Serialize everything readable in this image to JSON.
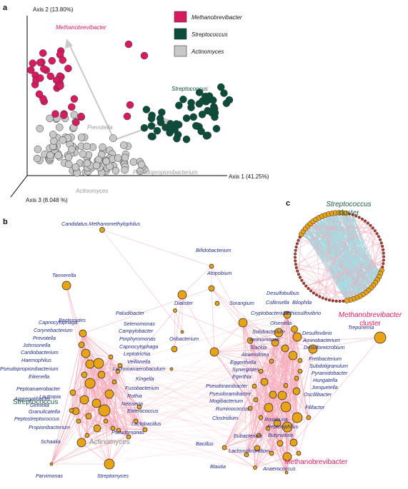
{
  "panel_labels": {
    "a": "a",
    "b": "b",
    "c": "c"
  },
  "colors": {
    "methano": "#d81b60",
    "strepto": "#0b4d3a",
    "actino": "#c8c8c8",
    "node": "#e8a317",
    "edge_pos": "#f7a8b8",
    "edge_neg": "#a8d8e0",
    "taxon": "#1f2a8a"
  },
  "pcoa": {
    "axis1": "Axis 1 (41.25%)",
    "axis2": "Axis 2 (13.80%)",
    "axis3": "Axis 3 (8.048 %)",
    "legend": [
      "Methanobrevibacter",
      "Streptococcus",
      "Actinomyces"
    ],
    "labels": {
      "methanobrevibacter": "Methanobrevibacter",
      "streptococcus": "Streptococcus",
      "prevotella": "Prevotella",
      "pseudopropionibacterium": "Pseudopropionibacterium",
      "actinomyces": "Actinomyces"
    }
  },
  "network": {
    "taxa": [
      "Candidatus.Methanomethylophilus",
      "Bifidobacterium",
      "Tannerella",
      "Atopobium",
      "Dialister",
      "Desulfobulbus",
      "Sorangium",
      "Bilophila",
      "Collinsella",
      "Bacteroides",
      "Paludibacter",
      "Cryptobacterium",
      "Dethiosulfovibrio",
      "Capnocytophaga",
      "Selenomonas",
      "Olsenella",
      "Treponema",
      "Corynebacterium",
      "Campylobacter",
      "Solobacterium",
      "Prevotella",
      "Porphyromonas",
      "Oribacterium",
      "Desulfovibrio",
      "Johnsonella",
      "Capnocytophaga",
      "Aminomonas",
      "Aminobacterium",
      "Cardiobacterium",
      "Leptotrichia",
      "Slackia",
      "Desulfomicrobium",
      "Veillonella",
      "Anaerolinea",
      "Haemophilus",
      "Lachnoanaerobaculum",
      "Fretibacterium",
      "Pseudopropionibacterium",
      "Eggerthella",
      "Subdoligranulum",
      "Eikenella",
      "Kingella",
      "Synergistes",
      "Pyramidobacter",
      "Fusobacterium",
      "Egerthia",
      "Hungatella",
      "Peptoanaerobacter",
      "Lautropia",
      "Rothia",
      "Pseudoramibacter",
      "Jonquetella",
      "Aggregatibacter",
      "Neisseria",
      "Pseudoramibacter",
      "Oscillibacter",
      "Gemella",
      "Enterococcus",
      "Mogibacterium",
      "Granulicatella",
      "Ruminococcus",
      "Filifactor",
      "Peptostreptococcus",
      "Lactobacillus",
      "Clostridium",
      "Propionibacterium",
      "Roseburia",
      "Peptoniphilus",
      "Schaalia",
      "Bacillus",
      "Eubacterium",
      "Butyrivibrio",
      "Pseudomonas",
      "Lachnoclostridium",
      "Parvimonas",
      "Streptomyces",
      "Blautia",
      "Anaerococcus"
    ],
    "cluster_labels": {
      "streptococcus": "Streptococcus",
      "actinomyces": "Actinomyces",
      "methanobrevibacter": "Methanobrevibacter"
    }
  },
  "circle": {
    "streptococcus_line1": "Streptococcus",
    "streptococcus_line2": "cluster",
    "methano_line1": "Methanobrevibacter",
    "methano_line2": "cluster"
  }
}
